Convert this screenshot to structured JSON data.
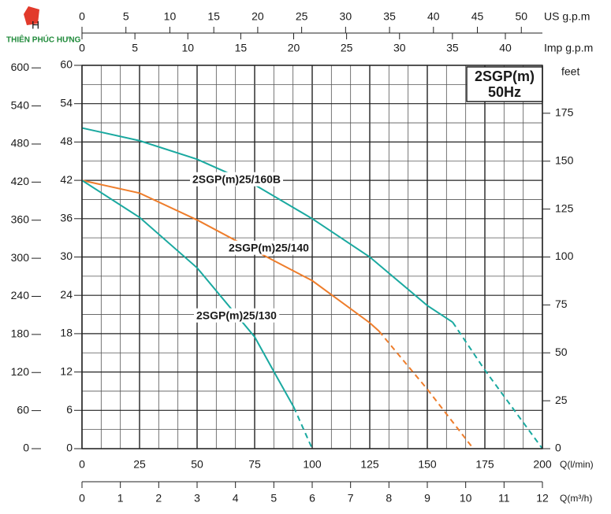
{
  "chart_data": {
    "type": "line",
    "logo_text": "THIÊN PHÚC HƯNG",
    "title": "2SGP(m)",
    "subtitle": "50Hz",
    "ylabel": "H",
    "xlabel": "Q(l/min)",
    "xlim": [
      0,
      200
    ],
    "xticks": [
      0,
      25,
      50,
      75,
      100,
      125,
      150,
      175,
      200
    ],
    "ylim": [
      0,
      60
    ],
    "yticks": [
      0,
      6,
      12,
      18,
      24,
      30,
      36,
      42,
      48,
      54,
      60
    ],
    "yminor": [
      3,
      9,
      15,
      21,
      27,
      33,
      39,
      45,
      51,
      57
    ],
    "kpa_axis": {
      "lim": [
        0,
        604
      ],
      "ticks": [
        0,
        60,
        120,
        180,
        240,
        300,
        360,
        420,
        480,
        540,
        600
      ]
    },
    "feet_axis": {
      "label": "feet",
      "lim": [
        0,
        200
      ],
      "ticks": [
        0,
        25,
        50,
        75,
        100,
        125,
        150,
        175
      ]
    },
    "us_axis": {
      "label": "US  g.p.m",
      "lim": [
        0,
        52.4
      ],
      "ticks": [
        0,
        5,
        10,
        15,
        20,
        25,
        30,
        35,
        40,
        45,
        50
      ]
    },
    "imp_axis": {
      "label": "Imp  g.p.m",
      "lim": [
        0,
        43.5
      ],
      "ticks": [
        0,
        5,
        10,
        15,
        20,
        25,
        30,
        35,
        40
      ]
    },
    "m3h_axis": {
      "label": "Q(m³/h)",
      "lim": [
        0,
        12
      ],
      "ticks": [
        0,
        1,
        2,
        3,
        4,
        5,
        6,
        7,
        8,
        9,
        10,
        11,
        12
      ],
      "minor": [
        0.5,
        1.5,
        2.5,
        3.5,
        4.5,
        5.5,
        6.5,
        7.5,
        8.5,
        9.5,
        10.5,
        11.5
      ]
    },
    "grid": true,
    "series": [
      {
        "name": "2SGP(m)25/160B",
        "color": "#1aa9a0",
        "x": [
          0,
          25,
          50,
          75,
          100,
          125,
          150,
          161
        ],
        "values": [
          50.2,
          48.2,
          45.3,
          41.3,
          36,
          30,
          22.4,
          19.8
        ],
        "dashed_x": [
          161,
          175,
          200
        ],
        "dashed_values": [
          19.8,
          12.3,
          0
        ]
      },
      {
        "name": "2SGP(m)25/140",
        "color": "#ee7d2b",
        "x": [
          0,
          25,
          50,
          75,
          100,
          125,
          129
        ],
        "values": [
          42,
          40,
          35.8,
          31,
          26.3,
          19.7,
          18.4
        ],
        "dashed_x": [
          129,
          150,
          170
        ],
        "dashed_values": [
          18.4,
          9.3,
          0
        ]
      },
      {
        "name": "2SGP(m)25/130",
        "color": "#1aa9a0",
        "x": [
          0,
          25,
          50,
          75,
          85,
          92
        ],
        "values": [
          42,
          36.2,
          28.3,
          17.5,
          11,
          6.5
        ],
        "dashed_x": [
          92,
          100
        ],
        "dashed_values": [
          6.5,
          0
        ]
      }
    ]
  }
}
